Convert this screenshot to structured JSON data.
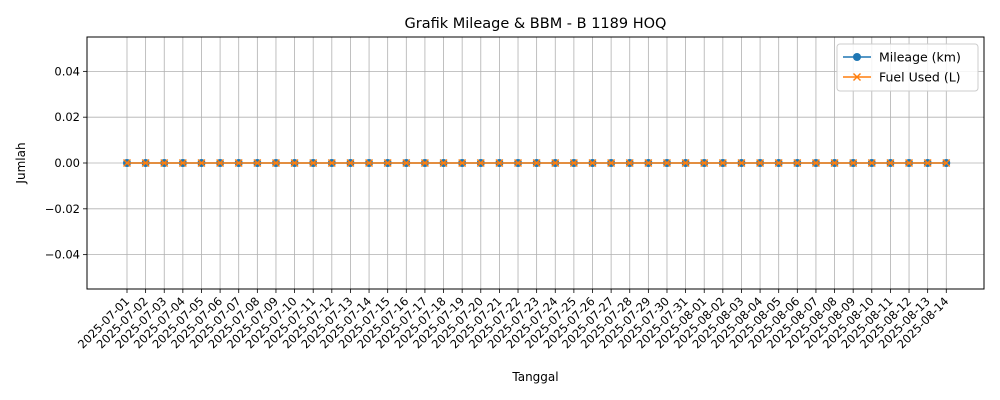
{
  "chart_data": {
    "type": "line",
    "title": "Grafik Mileage & BBM - B 1189 HOQ",
    "xlabel": "Tanggal",
    "ylabel": "Jumlah",
    "ylim": [
      -0.055,
      0.055
    ],
    "yticks": [
      -0.04,
      -0.02,
      0.0,
      0.02,
      0.04
    ],
    "ytick_labels": [
      "−0.04",
      "−0.02",
      "0.00",
      "0.02",
      "0.04"
    ],
    "grid": true,
    "legend_position": "top-right",
    "x": [
      "2025-07-01",
      "2025-07-02",
      "2025-07-03",
      "2025-07-04",
      "2025-07-05",
      "2025-07-06",
      "2025-07-07",
      "2025-07-08",
      "2025-07-09",
      "2025-07-10",
      "2025-07-11",
      "2025-07-12",
      "2025-07-13",
      "2025-07-14",
      "2025-07-15",
      "2025-07-16",
      "2025-07-17",
      "2025-07-18",
      "2025-07-19",
      "2025-07-20",
      "2025-07-21",
      "2025-07-22",
      "2025-07-23",
      "2025-07-24",
      "2025-07-25",
      "2025-07-26",
      "2025-07-27",
      "2025-07-28",
      "2025-07-29",
      "2025-07-30",
      "2025-07-31",
      "2025-08-01",
      "2025-08-02",
      "2025-08-03",
      "2025-08-04",
      "2025-08-05",
      "2025-08-06",
      "2025-08-07",
      "2025-08-08",
      "2025-08-09",
      "2025-08-10",
      "2025-08-11",
      "2025-08-12",
      "2025-08-13",
      "2025-08-14"
    ],
    "series": [
      {
        "name": "Mileage (km)",
        "marker": "circle",
        "color": "#1f77b4",
        "values": [
          0,
          0,
          0,
          0,
          0,
          0,
          0,
          0,
          0,
          0,
          0,
          0,
          0,
          0,
          0,
          0,
          0,
          0,
          0,
          0,
          0,
          0,
          0,
          0,
          0,
          0,
          0,
          0,
          0,
          0,
          0,
          0,
          0,
          0,
          0,
          0,
          0,
          0,
          0,
          0,
          0,
          0,
          0,
          0,
          0
        ]
      },
      {
        "name": "Fuel Used (L)",
        "marker": "x",
        "color": "#ff7f0e",
        "values": [
          0,
          0,
          0,
          0,
          0,
          0,
          0,
          0,
          0,
          0,
          0,
          0,
          0,
          0,
          0,
          0,
          0,
          0,
          0,
          0,
          0,
          0,
          0,
          0,
          0,
          0,
          0,
          0,
          0,
          0,
          0,
          0,
          0,
          0,
          0,
          0,
          0,
          0,
          0,
          0,
          0,
          0,
          0,
          0,
          0
        ]
      }
    ]
  }
}
